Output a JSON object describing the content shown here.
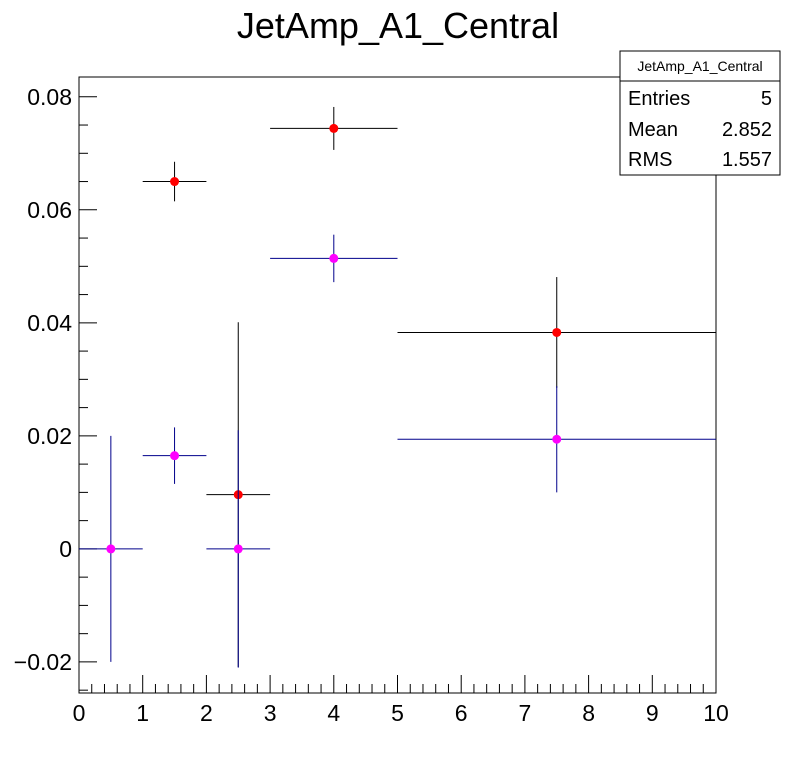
{
  "chart_data": {
    "type": "scatter",
    "title": "JetAmp_A1_Central",
    "xlabel": "",
    "ylabel": "",
    "xlim": [
      0,
      10
    ],
    "ylim": [
      -0.0255,
      0.0835
    ],
    "x_ticks": [
      0,
      1,
      2,
      3,
      4,
      5,
      6,
      7,
      8,
      9,
      10
    ],
    "x_tick_labels": [
      "0",
      "1",
      "2",
      "3",
      "4",
      "5",
      "6",
      "7",
      "8",
      "9",
      "10"
    ],
    "y_ticks": [
      -0.02,
      0,
      0.02,
      0.04,
      0.06,
      0.08
    ],
    "y_tick_labels": [
      "−0.02",
      "0",
      "0.02",
      "0.04",
      "0.06",
      "0.08"
    ],
    "grid": false,
    "legend": "none",
    "series": [
      {
        "color": "#ff0000",
        "bar_color": "#000000",
        "points": [
          {
            "x": 1.5,
            "xerr": 0.5,
            "y": 0.065,
            "yerr": 0.0035
          },
          {
            "x": 2.5,
            "xerr": 0.5,
            "y": 0.0096,
            "yerr": 0.0305
          },
          {
            "x": 4.0,
            "xerr": 1.0,
            "y": 0.0744,
            "yerr": 0.0038
          },
          {
            "x": 7.5,
            "xerr": 2.5,
            "y": 0.0383,
            "yerr": 0.0098
          }
        ]
      },
      {
        "color": "#ff00ff",
        "bar_color": "#00008b",
        "points": [
          {
            "x": 0.5,
            "xerr": 0.5,
            "y": 0.0,
            "yerr": 0.02
          },
          {
            "x": 1.5,
            "xerr": 0.5,
            "y": 0.0165,
            "yerr": 0.005
          },
          {
            "x": 2.5,
            "xerr": 0.5,
            "y": 0.0,
            "yerr": 0.021
          },
          {
            "x": 4.0,
            "xerr": 1.0,
            "y": 0.0514,
            "yerr": 0.0042
          },
          {
            "x": 7.5,
            "xerr": 2.5,
            "y": 0.0194,
            "yerr": 0.0094
          }
        ]
      }
    ],
    "stats_box": {
      "title": "JetAmp_A1_Central",
      "entries_label": "Entries",
      "entries_value": "5",
      "mean_label": "Mean",
      "mean_value": "2.852",
      "rms_label": "RMS",
      "rms_value": "1.557"
    }
  }
}
